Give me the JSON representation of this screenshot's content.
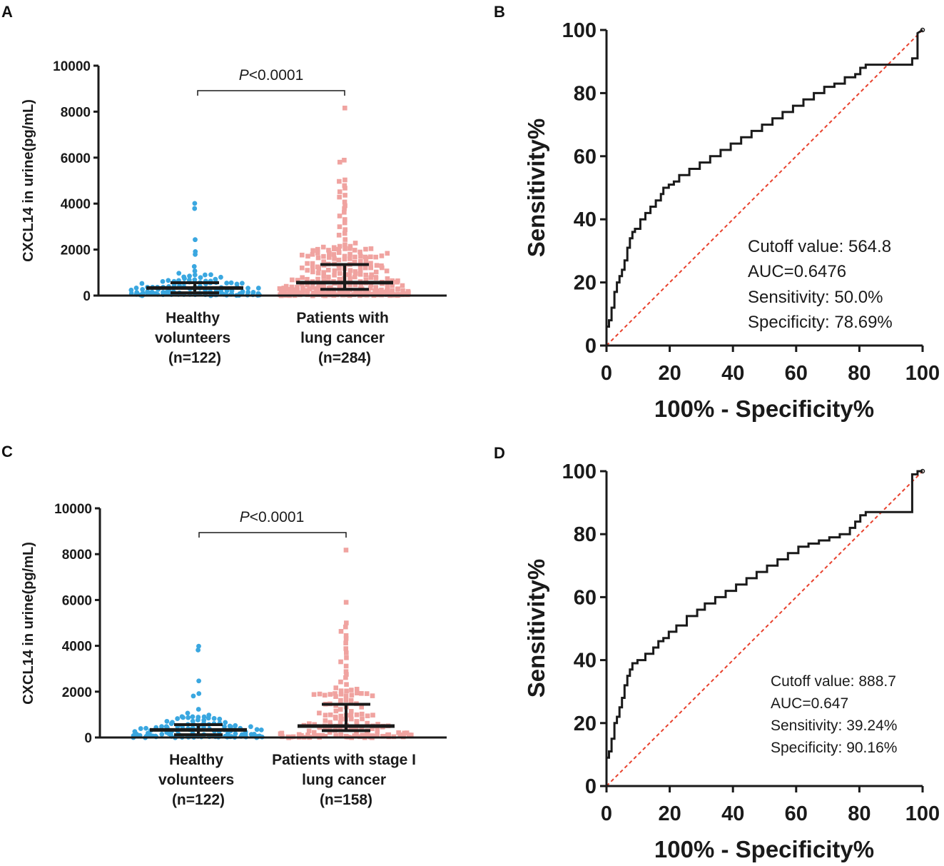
{
  "colors": {
    "healthy": "#3aa7e0",
    "cancer": "#f0a3a0",
    "roc_line": "#1a1a1a",
    "reference_line": "#e8402c",
    "axis": "#1a1a1a"
  },
  "chart_data": [
    {
      "panel": "A",
      "type": "scatter",
      "ylabel": "CXCL14 in urine(pg/mL)",
      "ylim": [
        0,
        10000
      ],
      "yticks": [
        "0",
        "2000",
        "4000",
        "6000",
        "8000",
        "10000"
      ],
      "pvalue": {
        "prefix": "P",
        "rest": "<0.0001"
      },
      "groups": [
        {
          "name_lines": [
            "Healthy",
            "volunteers",
            "(n=122)"
          ],
          "n": 122,
          "median": 330,
          "q1": 120,
          "q3": 560,
          "outliers": [
            3980,
            3800,
            2450,
            1920,
            1780,
            1250,
            1080,
            960,
            900
          ]
        },
        {
          "name_lines": [
            "Patients with",
            "lung cancer",
            "(n=284)"
          ],
          "n": 284,
          "median": 564,
          "q1": 270,
          "q3": 1350,
          "outliers": [
            8180,
            5900,
            5820,
            5020,
            4960,
            4780,
            4650,
            4500,
            4380,
            4300,
            4100,
            3900,
            3760,
            3600,
            3450,
            3300,
            3150,
            3000,
            2850,
            2700,
            2600,
            2450,
            2300
          ]
        }
      ]
    },
    {
      "panel": "B",
      "type": "line",
      "xlabel": "100% - Specificity%",
      "ylabel": "Sensitivity%",
      "xlim": [
        0,
        100
      ],
      "ylim": [
        0,
        100
      ],
      "xticks": [
        "0",
        "20",
        "40",
        "60",
        "80",
        "100"
      ],
      "yticks": [
        "0",
        "20",
        "40",
        "60",
        "80",
        "100"
      ],
      "annotations": [
        "Cutoff value: 564.8",
        "AUC=0.6476",
        "Sensitivity: 50.0%",
        "Specificity: 78.69%"
      ],
      "x": [
        0,
        0.8,
        0.8,
        1.6,
        1.6,
        2.5,
        2.5,
        3.3,
        3.3,
        4.1,
        4.1,
        4.9,
        4.9,
        5.7,
        5.7,
        6.6,
        6.6,
        7.4,
        7.4,
        8.2,
        8.2,
        9.0,
        9.0,
        10.7,
        10.7,
        12.3,
        12.3,
        13.9,
        13.9,
        15.6,
        15.6,
        17.2,
        17.2,
        18.0,
        18.0,
        19.7,
        19.7,
        21.3,
        21.3,
        23.0,
        23.0,
        26.2,
        26.2,
        29.5,
        29.5,
        32.8,
        32.8,
        36.1,
        36.1,
        39.3,
        39.3,
        42.6,
        42.6,
        45.9,
        45.9,
        49.2,
        49.2,
        52.5,
        52.5,
        55.7,
        55.7,
        59.0,
        59.0,
        62.3,
        62.3,
        65.6,
        65.6,
        68.9,
        68.9,
        72.1,
        72.1,
        75.4,
        75.4,
        78.7,
        78.7,
        80.3,
        80.3,
        82.0,
        82.0,
        96.7,
        96.7,
        98.4,
        98.4,
        100
      ],
      "y": [
        6,
        6,
        8,
        8,
        12,
        12,
        17,
        17,
        20,
        20,
        22,
        22,
        24,
        24,
        27,
        27,
        31,
        31,
        34,
        34,
        36,
        36,
        37,
        37,
        40,
        40,
        42,
        42,
        44,
        44,
        46,
        46,
        48,
        48,
        50,
        50,
        51,
        51,
        52,
        52,
        54,
        54,
        56,
        56,
        58,
        58,
        60,
        60,
        62,
        62,
        64,
        64,
        66,
        66,
        68,
        68,
        70,
        70,
        72,
        72,
        74,
        74,
        76,
        76,
        78,
        78,
        80,
        80,
        82,
        82,
        83,
        83,
        85,
        85,
        86,
        86,
        88,
        88,
        89,
        89,
        91,
        91,
        99,
        100
      ]
    },
    {
      "panel": "C",
      "type": "scatter",
      "ylabel": "CXCL14 in urine(pg/mL)",
      "ylim": [
        0,
        10000
      ],
      "yticks": [
        "0",
        "2000",
        "4000",
        "6000",
        "8000",
        "10000"
      ],
      "pvalue": {
        "prefix": "P",
        "rest": "<0.0001"
      },
      "groups": [
        {
          "name_lines": [
            "Healthy",
            "volunteers",
            "(n=122)"
          ],
          "n": 122,
          "median": 330,
          "q1": 120,
          "q3": 560,
          "outliers": [
            3980,
            3800,
            2450,
            1920,
            1780,
            1250,
            1080,
            960,
            900
          ]
        },
        {
          "name_lines": [
            "Patients with stage I",
            "lung cancer",
            "(n=158)"
          ],
          "n": 158,
          "median": 500,
          "q1": 300,
          "q3": 1450,
          "outliers": [
            8180,
            5900,
            5020,
            4800,
            4650,
            4450,
            4300,
            4100,
            3900,
            3700,
            3500,
            3300,
            3100,
            2900,
            2750,
            2600,
            2450,
            2300
          ]
        }
      ]
    },
    {
      "panel": "D",
      "type": "line",
      "xlabel": "100% - Specificity%",
      "ylabel": "Sensitivity%",
      "xlim": [
        0,
        100
      ],
      "ylim": [
        0,
        100
      ],
      "xticks": [
        "0",
        "20",
        "40",
        "60",
        "80",
        "100"
      ],
      "yticks": [
        "0",
        "20",
        "40",
        "60",
        "80",
        "100"
      ],
      "annotations": [
        "Cutoff value: 888.7",
        "AUC=0.647",
        "Sensitivity: 39.24%",
        "Specificity: 90.16%"
      ],
      "x": [
        0,
        0.8,
        0.8,
        1.6,
        1.6,
        2.5,
        2.5,
        3.3,
        3.3,
        4.1,
        4.1,
        4.9,
        4.9,
        5.7,
        5.7,
        6.6,
        6.6,
        7.4,
        7.4,
        8.2,
        8.2,
        9.8,
        9.8,
        12.3,
        12.3,
        14.8,
        14.8,
        16.4,
        16.4,
        18.0,
        18.0,
        19.7,
        19.7,
        22.1,
        22.1,
        25.4,
        25.4,
        28.7,
        28.7,
        31.1,
        31.1,
        34.4,
        34.4,
        37.7,
        37.7,
        41.0,
        41.0,
        44.3,
        44.3,
        47.5,
        47.5,
        50.8,
        50.8,
        54.1,
        54.1,
        57.4,
        57.4,
        60.7,
        60.7,
        63.9,
        63.9,
        67.2,
        67.2,
        70.5,
        70.5,
        73.8,
        73.8,
        77.0,
        77.0,
        78.7,
        78.7,
        80.3,
        80.3,
        82.0,
        82.0,
        96.7,
        96.7,
        98.4,
        98.4,
        100
      ],
      "y": [
        9,
        9,
        11,
        11,
        15,
        15,
        20,
        20,
        22,
        22,
        25,
        25,
        28,
        28,
        32,
        32,
        35,
        35,
        37,
        37,
        39,
        39,
        40,
        40,
        42,
        42,
        44,
        44,
        46,
        46,
        47,
        47,
        49,
        49,
        51,
        51,
        54,
        54,
        56,
        56,
        58,
        58,
        60,
        60,
        62,
        62,
        64,
        64,
        66,
        66,
        68,
        68,
        70,
        70,
        72,
        72,
        74,
        74,
        76,
        76,
        77,
        77,
        78,
        78,
        79,
        79,
        80,
        80,
        82,
        82,
        84,
        84,
        86,
        86,
        87,
        87,
        99,
        99,
        100,
        100
      ]
    }
  ]
}
